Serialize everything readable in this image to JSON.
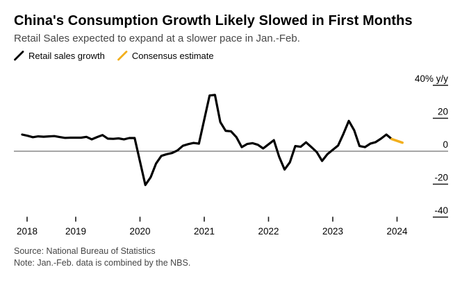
{
  "header": {
    "title": "China's Consumption Growth Likely Slowed in First Months",
    "subtitle": "Retail Sales expected to expand at a slower pace in Jan.-Feb."
  },
  "legend": [
    {
      "label": "Retail sales growth",
      "color": "#000000"
    },
    {
      "label": "Consensus estimate",
      "color": "#F2AF1D"
    }
  ],
  "footer": {
    "source": "Source: National Bureau of Statistics",
    "note": "Note: Jan.-Feb. data is combined by the NBS."
  },
  "chart_data": {
    "type": "line",
    "title": "China's Consumption Growth Likely Slowed in First Months",
    "xlabel": "",
    "ylabel": "% y/y",
    "ylim": [
      -45,
      45
    ],
    "grid": "zero-line-only",
    "legend_position": "top-left",
    "y_axis": {
      "side": "right",
      "ticks": [
        {
          "value": 40,
          "label": "40% y/y"
        },
        {
          "value": 20,
          "label": "20"
        },
        {
          "value": 0,
          "label": "0"
        },
        {
          "value": -20,
          "label": "-20"
        },
        {
          "value": -40,
          "label": "-40"
        }
      ]
    },
    "x_axis": {
      "ticks": [
        "2018",
        "2019",
        "2020",
        "2021",
        "2022",
        "2023",
        "2024"
      ]
    },
    "series": [
      {
        "id": "retail-sales-line",
        "name": "Retail sales growth",
        "color": "#000000",
        "points": [
          [
            "2018-03",
            10.1
          ],
          [
            "2018-04",
            9.4
          ],
          [
            "2018-05",
            8.5
          ],
          [
            "2018-06",
            9.0
          ],
          [
            "2018-07",
            8.8
          ],
          [
            "2018-08",
            9.0
          ],
          [
            "2018-09",
            9.2
          ],
          [
            "2018-10",
            8.6
          ],
          [
            "2018-11",
            8.1
          ],
          [
            "2018-12",
            8.2
          ],
          [
            "2019-02",
            8.2
          ],
          [
            "2019-03",
            8.7
          ],
          [
            "2019-04",
            7.2
          ],
          [
            "2019-05",
            8.6
          ],
          [
            "2019-06",
            9.8
          ],
          [
            "2019-07",
            7.6
          ],
          [
            "2019-08",
            7.5
          ],
          [
            "2019-09",
            7.8
          ],
          [
            "2019-10",
            7.2
          ],
          [
            "2019-11",
            8.0
          ],
          [
            "2019-12",
            8.0
          ],
          [
            "2020-02",
            -20.5
          ],
          [
            "2020-03",
            -15.8
          ],
          [
            "2020-04",
            -7.5
          ],
          [
            "2020-05",
            -2.8
          ],
          [
            "2020-06",
            -1.8
          ],
          [
            "2020-07",
            -1.1
          ],
          [
            "2020-08",
            0.5
          ],
          [
            "2020-09",
            3.3
          ],
          [
            "2020-10",
            4.3
          ],
          [
            "2020-11",
            5.0
          ],
          [
            "2020-12",
            4.6
          ],
          [
            "2021-02",
            33.8
          ],
          [
            "2021-03",
            34.2
          ],
          [
            "2021-04",
            17.7
          ],
          [
            "2021-05",
            12.4
          ],
          [
            "2021-06",
            12.1
          ],
          [
            "2021-07",
            8.5
          ],
          [
            "2021-08",
            2.5
          ],
          [
            "2021-09",
            4.4
          ],
          [
            "2021-10",
            4.9
          ],
          [
            "2021-11",
            3.9
          ],
          [
            "2021-12",
            1.7
          ],
          [
            "2022-02",
            6.7
          ],
          [
            "2022-03",
            -3.5
          ],
          [
            "2022-04",
            -11.1
          ],
          [
            "2022-05",
            -6.7
          ],
          [
            "2022-06",
            3.1
          ],
          [
            "2022-07",
            2.7
          ],
          [
            "2022-08",
            5.4
          ],
          [
            "2022-09",
            2.5
          ],
          [
            "2022-10",
            -0.5
          ],
          [
            "2022-11",
            -5.9
          ],
          [
            "2022-12",
            -1.8
          ],
          [
            "2023-02",
            3.5
          ],
          [
            "2023-03",
            10.6
          ],
          [
            "2023-04",
            18.4
          ],
          [
            "2023-05",
            12.7
          ],
          [
            "2023-06",
            3.1
          ],
          [
            "2023-07",
            2.5
          ],
          [
            "2023-08",
            4.6
          ],
          [
            "2023-09",
            5.5
          ],
          [
            "2023-10",
            7.6
          ],
          [
            "2023-11",
            10.1
          ],
          [
            "2023-12",
            7.4
          ]
        ]
      },
      {
        "id": "consensus-line",
        "name": "Consensus estimate",
        "color": "#F2AF1D",
        "points": [
          [
            "2023-12",
            7.4
          ],
          [
            "2024-02",
            5.2
          ]
        ]
      }
    ]
  }
}
